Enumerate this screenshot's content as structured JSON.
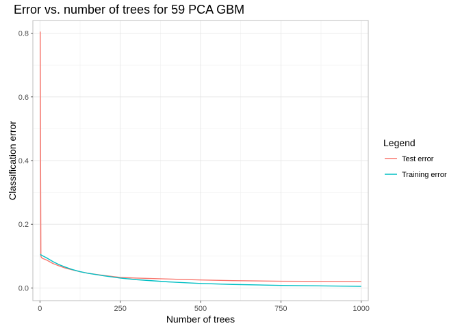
{
  "chart_data": {
    "type": "line",
    "title": "Error vs. number of trees for 59 PCA GBM",
    "xlabel": "Number of trees",
    "ylabel": "Classification error",
    "xlim": [
      -22,
      1022
    ],
    "ylim": [
      -0.04,
      0.84
    ],
    "x_ticks": [
      0,
      250,
      500,
      750,
      1000
    ],
    "x_tick_labels": [
      "0",
      "250",
      "500",
      "750",
      "1000"
    ],
    "y_ticks": [
      0.0,
      0.2,
      0.4,
      0.6,
      0.8
    ],
    "y_tick_labels": [
      "0.0",
      "0.2",
      "0.4",
      "0.6",
      "0.8"
    ],
    "grid": true,
    "legend": {
      "title": "Legend",
      "position": "right"
    },
    "series": [
      {
        "name": "Test error",
        "color": "#F8766D",
        "x": [
          1,
          2,
          3,
          5,
          10,
          20,
          40,
          60,
          80,
          100,
          125,
          150,
          200,
          250,
          300,
          400,
          500,
          600,
          750,
          1000
        ],
        "y": [
          0.805,
          0.4,
          0.1,
          0.095,
          0.092,
          0.088,
          0.077,
          0.069,
          0.062,
          0.057,
          0.051,
          0.046,
          0.039,
          0.033,
          0.031,
          0.028,
          0.025,
          0.023,
          0.021,
          0.02
        ]
      },
      {
        "name": "Training error",
        "color": "#00BFC4",
        "x": [
          1,
          2,
          3,
          5,
          10,
          20,
          40,
          60,
          80,
          100,
          125,
          150,
          200,
          250,
          300,
          400,
          500,
          600,
          750,
          1000
        ],
        "y": [
          0.105,
          0.105,
          0.104,
          0.103,
          0.1,
          0.095,
          0.083,
          0.073,
          0.065,
          0.058,
          0.051,
          0.046,
          0.038,
          0.031,
          0.026,
          0.019,
          0.014,
          0.011,
          0.008,
          0.005
        ]
      }
    ]
  }
}
